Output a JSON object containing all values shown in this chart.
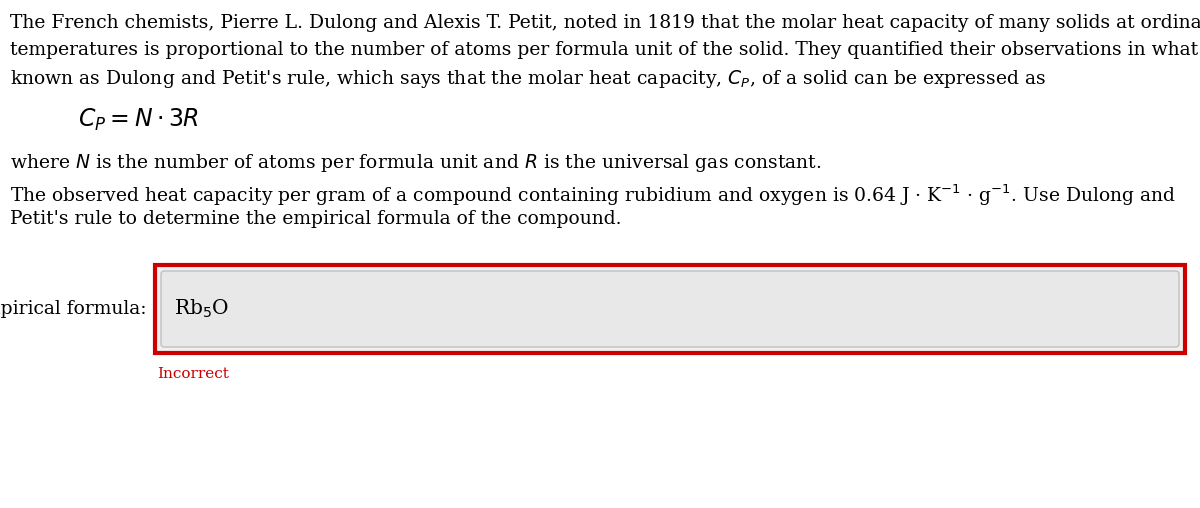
{
  "bg_color": "#ffffff",
  "text_color": "#000000",
  "line1": "The French chemists, Pierre L. Dulong and Alexis T. Petit, noted in 1819 that the molar heat capacity of many solids at ordinary",
  "line2": "temperatures is proportional to the number of atoms per formula unit of the solid. They quantified their observations in what is",
  "line3": "known as Dulong and Petit's rule, which says that the molar heat capacity, $C_P$, of a solid can be expressed as",
  "equation": "$C_P = N \\cdot 3R$",
  "line_where": "where $N$ is the number of atoms per formula unit and $R$ is the universal gas constant.",
  "line_obs1": "The observed heat capacity per gram of a compound containing rubidium and oxygen is 0.64 J · K$^{-1}$ · g$^{-1}$. Use Dulong and",
  "line_obs2": "Petit's rule to determine the empirical formula of the compound.",
  "label": "empirical formula:",
  "answer": "Rb$_5$O",
  "feedback": "Incorrect",
  "feedback_color": "#cc0000",
  "outer_box_color": "#cc0000",
  "outer_box_bg": "#f0f0f0",
  "inner_box_bg": "#e8e8e8",
  "inner_box_border": "#c0c0c0",
  "font_size_body": 13.5,
  "font_size_eq": 17,
  "font_size_label": 13.5,
  "font_size_feedback": 11
}
